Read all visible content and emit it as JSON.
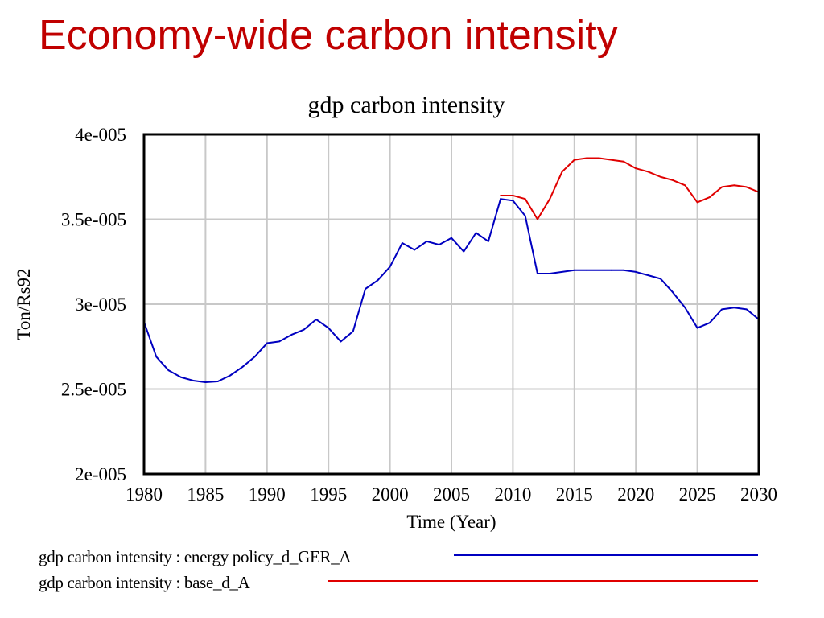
{
  "slide": {
    "title": "Economy-wide carbon intensity"
  },
  "chart_data": {
    "type": "line",
    "title": "gdp carbon intensity",
    "xlabel": "Time (Year)",
    "ylabel": "Ton/Rs92",
    "xlim": [
      1980,
      2030
    ],
    "ylim": [
      2e-05,
      4e-05
    ],
    "x_ticks": [
      1980,
      1985,
      1990,
      1995,
      2000,
      2005,
      2010,
      2015,
      2020,
      2025,
      2030
    ],
    "x_tick_labels": [
      "1980",
      "1985",
      "1990",
      "1995",
      "2000",
      "2005",
      "2010",
      "2015",
      "2020",
      "2025",
      "2030"
    ],
    "y_ticks": [
      2e-05,
      2.5e-05,
      3e-05,
      3.5e-05,
      4e-05
    ],
    "y_tick_labels": [
      "2e-005",
      "2.5e-005",
      "3e-005",
      "3.5e-005",
      "4e-005"
    ],
    "grid": true,
    "legend_position": "bottom",
    "series": [
      {
        "name": "gdp carbon intensity : energy policy_d_GER_A",
        "color": "#0000c0",
        "x": [
          1980,
          1981,
          1982,
          1983,
          1984,
          1985,
          1986,
          1987,
          1988,
          1989,
          1990,
          1991,
          1992,
          1993,
          1994,
          1995,
          1996,
          1997,
          1998,
          1999,
          2000,
          2001,
          2002,
          2003,
          2004,
          2005,
          2006,
          2007,
          2008,
          2009,
          2010,
          2011,
          2012,
          2013,
          2014,
          2015,
          2016,
          2017,
          2018,
          2019,
          2020,
          2021,
          2022,
          2023,
          2024,
          2025,
          2026,
          2027,
          2028,
          2029,
          2030
        ],
        "values": [
          2.895e-05,
          2.69e-05,
          2.61e-05,
          2.57e-05,
          2.55e-05,
          2.54e-05,
          2.545e-05,
          2.58e-05,
          2.63e-05,
          2.69e-05,
          2.77e-05,
          2.78e-05,
          2.82e-05,
          2.85e-05,
          2.91e-05,
          2.86e-05,
          2.78e-05,
          2.84e-05,
          3.09e-05,
          3.14e-05,
          3.22e-05,
          3.36e-05,
          3.32e-05,
          3.37e-05,
          3.35e-05,
          3.39e-05,
          3.31e-05,
          3.42e-05,
          3.37e-05,
          3.62e-05,
          3.61e-05,
          3.52e-05,
          3.18e-05,
          3.18e-05,
          3.19e-05,
          3.2e-05,
          3.2e-05,
          3.2e-05,
          3.2e-05,
          3.2e-05,
          3.19e-05,
          3.17e-05,
          3.15e-05,
          3.07e-05,
          2.98e-05,
          2.86e-05,
          2.89e-05,
          2.97e-05,
          2.98e-05,
          2.97e-05,
          2.91e-05
        ]
      },
      {
        "name": "gdp carbon intensity : base_d_A",
        "color": "#e00000",
        "x": [
          2009,
          2010,
          2011,
          2012,
          2013,
          2014,
          2015,
          2016,
          2017,
          2018,
          2019,
          2020,
          2021,
          2022,
          2023,
          2024,
          2025,
          2026,
          2027,
          2028,
          2029,
          2030
        ],
        "values": [
          3.64e-05,
          3.64e-05,
          3.62e-05,
          3.5e-05,
          3.62e-05,
          3.78e-05,
          3.85e-05,
          3.86e-05,
          3.86e-05,
          3.85e-05,
          3.84e-05,
          3.8e-05,
          3.78e-05,
          3.75e-05,
          3.73e-05,
          3.7e-05,
          3.6e-05,
          3.63e-05,
          3.69e-05,
          3.7e-05,
          3.69e-05,
          3.66e-05
        ]
      }
    ]
  }
}
